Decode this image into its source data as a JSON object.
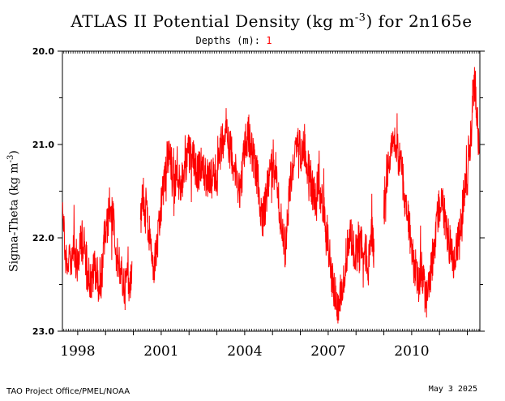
{
  "title_main": "ATLAS II Potential Density (kg m",
  "title_exp": "-3",
  "title_tail": ") for 2n165e",
  "depths_label": "Depths (m): ",
  "depths_value": "1",
  "ylabel_main": "Sigma-Theta (kg m",
  "ylabel_exp": "-3",
  "ylabel_tail": ")",
  "footer_left": "TAO Project Office/PMEL/NOAA",
  "footer_right": "May  3 2025",
  "chart_data": {
    "type": "line",
    "ylim": [
      23.0,
      20.0
    ],
    "xlim": [
      1997.45,
      2012.45
    ],
    "y_ticks": [
      "20.0",
      "21.0",
      "22.0",
      "23.0"
    ],
    "x_ticks": [
      "1998",
      "2001",
      "2004",
      "2007",
      "2010"
    ],
    "x_tick_values": [
      1998,
      2001,
      2004,
      2007,
      2010
    ],
    "series": [
      {
        "color": "#ff0000",
        "segments": [
          [
            [
              1997.46,
              21.55
            ],
            [
              1997.55,
              22.2
            ],
            [
              1997.7,
              22.3
            ],
            [
              1997.85,
              22.1
            ],
            [
              1998.0,
              22.3
            ],
            [
              1998.1,
              22.05
            ],
            [
              1998.25,
              22.1
            ],
            [
              1998.35,
              22.35
            ],
            [
              1998.5,
              22.5
            ],
            [
              1998.6,
              22.3
            ],
            [
              1998.75,
              22.45
            ],
            [
              1998.9,
              22.35
            ],
            [
              1998.95,
              22.0
            ],
            [
              1999.05,
              21.9
            ],
            [
              1999.15,
              21.65
            ],
            [
              1999.25,
              21.75
            ],
            [
              1999.3,
              21.9
            ],
            [
              1999.4,
              22.2
            ],
            [
              1999.5,
              22.3
            ],
            [
              1999.6,
              22.45
            ],
            [
              1999.7,
              22.55
            ],
            [
              1999.8,
              22.3
            ],
            [
              1999.9,
              22.45
            ],
            [
              1999.95,
              22.25
            ]
          ],
          [
            [
              2000.25,
              21.85
            ],
            [
              2000.35,
              21.5
            ],
            [
              2000.4,
              21.7
            ],
            [
              2000.45,
              21.65
            ],
            [
              2000.55,
              21.9
            ],
            [
              2000.65,
              22.25
            ],
            [
              2000.75,
              22.3
            ],
            [
              2000.85,
              22.1
            ],
            [
              2000.95,
              21.85
            ],
            [
              2001.05,
              21.5
            ],
            [
              2001.15,
              21.3
            ],
            [
              2001.25,
              21.1
            ],
            [
              2001.35,
              21.2
            ],
            [
              2001.45,
              21.4
            ],
            [
              2001.55,
              21.35
            ],
            [
              2001.7,
              21.45
            ],
            [
              2001.85,
              21.25
            ],
            [
              2002.0,
              21.1
            ],
            [
              2002.15,
              21.15
            ],
            [
              2002.3,
              21.3
            ],
            [
              2002.45,
              21.25
            ],
            [
              2002.6,
              21.35
            ],
            [
              2002.75,
              21.4
            ],
            [
              2002.9,
              21.35
            ],
            [
              2003.05,
              21.25
            ],
            [
              2003.15,
              21.0
            ],
            [
              2003.25,
              20.9
            ],
            [
              2003.35,
              20.75
            ],
            [
              2003.45,
              21.05
            ],
            [
              2003.55,
              21.1
            ],
            [
              2003.65,
              21.3
            ],
            [
              2003.75,
              21.4
            ],
            [
              2003.85,
              21.5
            ],
            [
              2003.95,
              21.15
            ],
            [
              2004.05,
              20.95
            ],
            [
              2004.15,
              20.9
            ],
            [
              2004.25,
              21.05
            ],
            [
              2004.35,
              21.2
            ],
            [
              2004.45,
              21.35
            ],
            [
              2004.55,
              21.6
            ],
            [
              2004.65,
              21.8
            ],
            [
              2004.75,
              21.65
            ],
            [
              2004.85,
              21.4
            ],
            [
              2004.95,
              21.2
            ],
            [
              2005.05,
              21.15
            ],
            [
              2005.15,
              21.35
            ],
            [
              2005.25,
              21.7
            ],
            [
              2005.35,
              21.95
            ],
            [
              2005.45,
              22.1
            ],
            [
              2005.55,
              21.75
            ],
            [
              2005.65,
              21.4
            ],
            [
              2005.75,
              21.2
            ],
            [
              2005.85,
              21.1
            ],
            [
              2005.95,
              21.0
            ],
            [
              2006.05,
              21.1
            ],
            [
              2006.15,
              21.0
            ],
            [
              2006.25,
              21.2
            ],
            [
              2006.35,
              21.35
            ],
            [
              2006.45,
              21.5
            ],
            [
              2006.55,
              21.55
            ],
            [
              2006.65,
              21.4
            ],
            [
              2006.75,
              21.6
            ],
            [
              2006.85,
              21.75
            ],
            [
              2006.95,
              21.9
            ],
            [
              2007.05,
              22.2
            ],
            [
              2007.15,
              22.45
            ],
            [
              2007.25,
              22.6
            ],
            [
              2007.35,
              22.7
            ],
            [
              2007.45,
              22.55
            ],
            [
              2007.55,
              22.4
            ],
            [
              2007.65,
              22.2
            ],
            [
              2007.75,
              21.95
            ],
            [
              2007.85,
              22.0
            ],
            [
              2007.95,
              22.2
            ],
            [
              2008.05,
              22.1
            ],
            [
              2008.15,
              21.9
            ],
            [
              2008.25,
              22.25
            ],
            [
              2008.35,
              22.15
            ],
            [
              2008.45,
              22.3
            ],
            [
              2008.55,
              21.9
            ],
            [
              2008.65,
              22.15
            ]
          ],
          [
            [
              2009.0,
              21.75
            ],
            [
              2009.05,
              21.45
            ],
            [
              2009.15,
              21.2
            ],
            [
              2009.25,
              21.0
            ],
            [
              2009.35,
              20.85
            ],
            [
              2009.45,
              21.05
            ],
            [
              2009.55,
              21.15
            ],
            [
              2009.65,
              21.3
            ],
            [
              2009.75,
              21.55
            ],
            [
              2009.85,
              21.75
            ],
            [
              2009.95,
              22.0
            ],
            [
              2010.05,
              22.25
            ],
            [
              2010.15,
              22.35
            ],
            [
              2010.25,
              22.5
            ],
            [
              2010.35,
              22.3
            ],
            [
              2010.45,
              22.55
            ],
            [
              2010.55,
              22.65
            ],
            [
              2010.65,
              22.45
            ],
            [
              2010.75,
              22.25
            ],
            [
              2010.85,
              22.0
            ],
            [
              2010.95,
              21.75
            ],
            [
              2011.05,
              21.55
            ],
            [
              2011.15,
              21.7
            ],
            [
              2011.25,
              21.9
            ],
            [
              2011.35,
              22.05
            ],
            [
              2011.45,
              22.2
            ],
            [
              2011.55,
              22.25
            ],
            [
              2011.65,
              22.05
            ],
            [
              2011.75,
              21.85
            ],
            [
              2011.85,
              21.6
            ],
            [
              2011.95,
              21.4
            ],
            [
              2012.05,
              21.1
            ],
            [
              2012.15,
              20.8
            ],
            [
              2012.2,
              20.45
            ],
            [
              2012.25,
              20.3
            ],
            [
              2012.3,
              20.45
            ],
            [
              2012.35,
              20.7
            ],
            [
              2012.42,
              21.1
            ]
          ]
        ]
      }
    ]
  }
}
